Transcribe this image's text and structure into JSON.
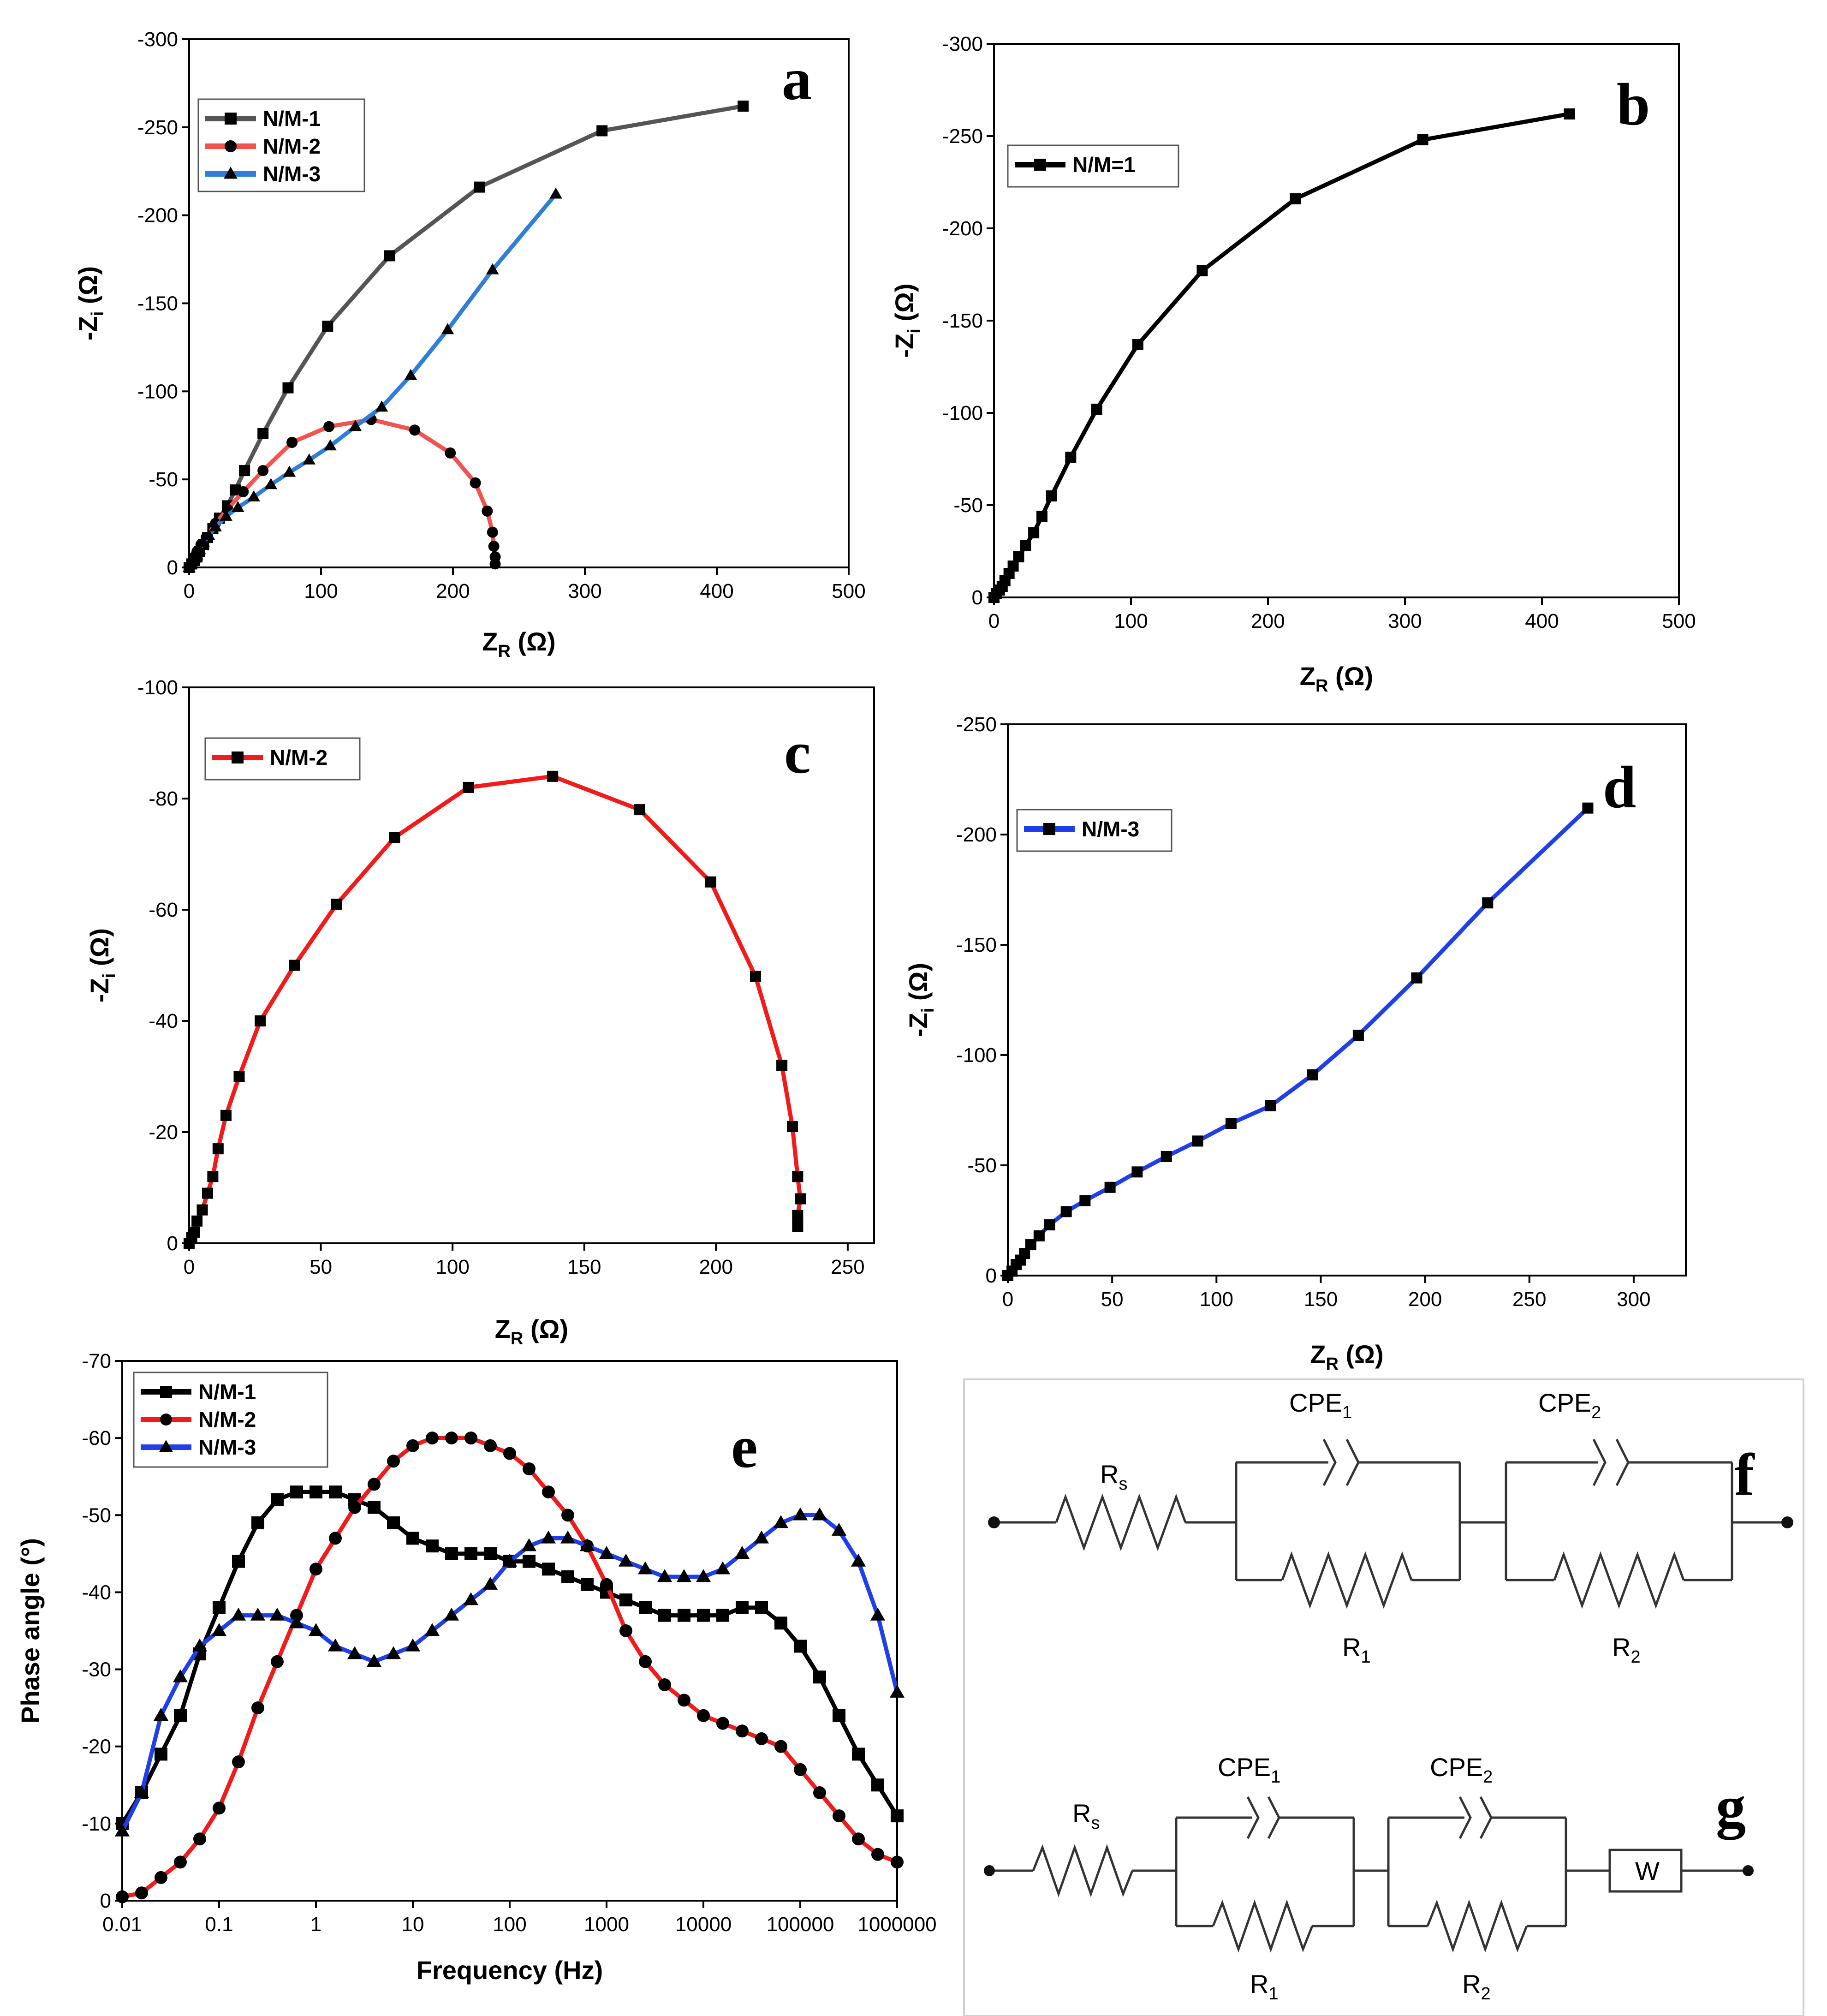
{
  "chart_data": [
    {
      "panel": "a",
      "type": "line",
      "xlabel_main": "Z",
      "xlabel_sub": "R",
      "xlabel_unit": " (Ω)",
      "ylabel_main": "-Z",
      "ylabel_sub": "i",
      "ylabel_unit": " (Ω)",
      "xlim": [
        0,
        500
      ],
      "ylim": [
        0,
        -300
      ],
      "xticks": [
        0,
        100,
        200,
        300,
        400,
        500
      ],
      "yticks": [
        0,
        -50,
        -100,
        -150,
        -200,
        -250,
        -300
      ],
      "legend_position": "top-left",
      "series": [
        {
          "name": "N/M-1",
          "color": "#555555",
          "marker": "square",
          "x": [
            0,
            2,
            4,
            6,
            8,
            11,
            14,
            18,
            23,
            29,
            35,
            42,
            56,
            75,
            105,
            152,
            220,
            313,
            420
          ],
          "y": [
            0,
            -2,
            -4,
            -6,
            -9,
            -13,
            -17,
            -22,
            -28,
            -35,
            -44,
            -55,
            -76,
            -102,
            -137,
            -177,
            -216,
            -248,
            -262
          ]
        },
        {
          "name": "N/M-2",
          "color": "#f2534f",
          "marker": "circle",
          "x": [
            0,
            2,
            4,
            6,
            9,
            13,
            20,
            29,
            41,
            56,
            78,
            106,
            138,
            171,
            198,
            217,
            226,
            230,
            231,
            232,
            232
          ],
          "y": [
            0,
            -3,
            -6,
            -9,
            -13,
            -17,
            -25,
            -33,
            -43,
            -55,
            -71,
            -80,
            -84,
            -78,
            -65,
            -48,
            -32,
            -20,
            -12,
            -6,
            -2
          ]
        },
        {
          "name": "N/M-3",
          "color": "#2f7fd9",
          "marker": "triangle",
          "x": [
            0,
            2,
            4,
            6,
            8,
            11,
            15,
            20,
            28,
            37,
            49,
            62,
            76,
            91,
            107,
            126,
            146,
            168,
            196,
            230,
            278
          ],
          "y": [
            0,
            -2,
            -5,
            -7,
            -10,
            -14,
            -18,
            -23,
            -29,
            -34,
            -40,
            -47,
            -54,
            -61,
            -69,
            -80,
            -91,
            -109,
            -135,
            -169,
            -212
          ]
        }
      ]
    },
    {
      "panel": "b",
      "type": "line",
      "xlabel_main": "Z",
      "xlabel_sub": "R",
      "xlabel_unit": " (Ω)",
      "ylabel_main": "-Z",
      "ylabel_sub": "i",
      "ylabel_unit": " (Ω)",
      "xlim": [
        0,
        500
      ],
      "ylim": [
        0,
        -300
      ],
      "xticks": [
        0,
        100,
        200,
        300,
        400,
        500
      ],
      "yticks": [
        0,
        -50,
        -100,
        -150,
        -200,
        -250,
        -300
      ],
      "legend_position": "top-left",
      "series": [
        {
          "name": "N/M=1",
          "color": "#000000",
          "marker": "square",
          "x": [
            0,
            2,
            4,
            6,
            8,
            11,
            14,
            18,
            23,
            29,
            35,
            42,
            56,
            75,
            105,
            152,
            220,
            313,
            420
          ],
          "y": [
            0,
            -2,
            -4,
            -6,
            -9,
            -13,
            -17,
            -22,
            -28,
            -35,
            -44,
            -55,
            -76,
            -102,
            -137,
            -177,
            -216,
            -248,
            -262
          ]
        }
      ]
    },
    {
      "panel": "c",
      "type": "line",
      "xlabel_main": "Z",
      "xlabel_sub": "R",
      "xlabel_unit": " (Ω)",
      "ylabel_main": "-Z",
      "ylabel_sub": "i",
      "ylabel_unit": " (Ω)",
      "xlim": [
        0,
        260
      ],
      "ylim": [
        0,
        -100
      ],
      "xticks": [
        0,
        50,
        100,
        150,
        200,
        250
      ],
      "yticks": [
        0,
        -20,
        -40,
        -60,
        -80,
        -100
      ],
      "legend_position": "top-left",
      "series": [
        {
          "name": "N/M-2",
          "color": "#f21a1a",
          "marker": "square",
          "x": [
            0,
            1,
            2,
            3,
            5,
            7,
            9,
            11,
            14,
            19,
            27,
            40,
            56,
            78,
            106,
            138,
            171,
            198,
            215,
            225,
            229,
            231,
            232,
            231,
            231
          ],
          "y": [
            0,
            -1,
            -2,
            -4,
            -6,
            -9,
            -12,
            -17,
            -23,
            -30,
            -40,
            -50,
            -61,
            -73,
            -82,
            -84,
            -78,
            -65,
            -48,
            -32,
            -21,
            -12,
            -8,
            -5,
            -3
          ]
        }
      ]
    },
    {
      "panel": "d",
      "type": "line",
      "xlabel_main": "Z",
      "xlabel_sub": "R",
      "xlabel_unit": " (Ω)",
      "ylabel_main": "-Z",
      "ylabel_sub": "i",
      "ylabel_unit": " (Ω)",
      "xlim": [
        0,
        325
      ],
      "ylim": [
        0,
        -250
      ],
      "xticks": [
        0,
        50,
        100,
        150,
        200,
        250,
        300
      ],
      "yticks": [
        0,
        -50,
        -100,
        -150,
        -200,
        -250
      ],
      "legend_position": "top-left",
      "series": [
        {
          "name": "N/M-3",
          "color": "#1f3fe8",
          "marker": "square",
          "x": [
            0,
            2,
            4,
            6,
            8,
            11,
            15,
            20,
            28,
            37,
            49,
            62,
            76,
            91,
            107,
            126,
            146,
            168,
            196,
            230,
            278
          ],
          "y": [
            0,
            -2,
            -5,
            -7,
            -10,
            -14,
            -18,
            -23,
            -29,
            -34,
            -40,
            -47,
            -54,
            -61,
            -69,
            -77,
            -91,
            -109,
            -135,
            -169,
            -212
          ]
        }
      ]
    },
    {
      "panel": "e",
      "type": "line",
      "xlabel_main": "Frequency (Hz)",
      "ylabel_main": "Phase angle (°)",
      "xscale": "log",
      "xlim": [
        0.01,
        1000000
      ],
      "ylim": [
        0,
        -70
      ],
      "xticks": [
        0.01,
        0.1,
        1,
        10,
        100,
        1000,
        10000,
        100000,
        1000000
      ],
      "xtick_labels": [
        "0.01",
        "0.1",
        "1",
        "10",
        "100",
        "1000",
        "10000",
        "100000",
        "1000000"
      ],
      "yticks": [
        0,
        -10,
        -20,
        -30,
        -40,
        -50,
        -60,
        -70
      ],
      "legend_position": "top-left",
      "series": [
        {
          "name": "N/M-1",
          "color": "#000000",
          "marker": "square",
          "logx": [
            -2,
            -1.8,
            -1.6,
            -1.4,
            -1.2,
            -1,
            -0.8,
            -0.6,
            -0.4,
            -0.2,
            0,
            0.2,
            0.4,
            0.6,
            0.8,
            1,
            1.2,
            1.4,
            1.6,
            1.8,
            2,
            2.2,
            2.4,
            2.6,
            2.8,
            3,
            3.2,
            3.4,
            3.6,
            3.8,
            4,
            4.2,
            4.4,
            4.6,
            4.8,
            5,
            5.2,
            5.4,
            5.6,
            5.8,
            6
          ],
          "y": [
            -10,
            -14,
            -19,
            -24,
            -32,
            -38,
            -44,
            -49,
            -52,
            -53,
            -53,
            -53,
            -52,
            -51,
            -49,
            -47,
            -46,
            -45,
            -45,
            -45,
            -44,
            -44,
            -43,
            -42,
            -41,
            -40,
            -39,
            -38,
            -37,
            -37,
            -37,
            -37,
            -38,
            -38,
            -36,
            -33,
            -29,
            -24,
            -19,
            -15,
            -11
          ]
        },
        {
          "name": "N/M-2",
          "color": "#f21a1a",
          "marker": "circle",
          "logx": [
            -2,
            -1.8,
            -1.6,
            -1.4,
            -1.2,
            -1,
            -0.8,
            -0.6,
            -0.4,
            -0.2,
            0,
            0.2,
            0.4,
            0.6,
            0.8,
            1,
            1.2,
            1.4,
            1.6,
            1.8,
            2,
            2.2,
            2.4,
            2.6,
            2.8,
            3,
            3.2,
            3.4,
            3.6,
            3.8,
            4,
            4.2,
            4.4,
            4.6,
            4.8,
            5,
            5.2,
            5.4,
            5.6,
            5.8,
            6
          ],
          "y": [
            -0.5,
            -1,
            -3,
            -5,
            -8,
            -12,
            -18,
            -25,
            -31,
            -37,
            -43,
            -47,
            -51,
            -54,
            -57,
            -59,
            -60,
            -60,
            -60,
            -59,
            -58,
            -56,
            -53,
            -50,
            -46,
            -41,
            -35,
            -31,
            -28,
            -26,
            -24,
            -23,
            -22,
            -21,
            -20,
            -17,
            -14,
            -11,
            -8,
            -6,
            -5
          ]
        },
        {
          "name": "N/M-3",
          "color": "#1f3fe8",
          "marker": "triangle",
          "logx": [
            -2,
            -1.8,
            -1.6,
            -1.4,
            -1.2,
            -1,
            -0.8,
            -0.6,
            -0.4,
            -0.2,
            0,
            0.2,
            0.4,
            0.6,
            0.8,
            1,
            1.2,
            1.4,
            1.6,
            1.8,
            2,
            2.2,
            2.4,
            2.6,
            2.8,
            3,
            3.2,
            3.4,
            3.6,
            3.8,
            4,
            4.2,
            4.4,
            4.6,
            4.8,
            5,
            5.2,
            5.4,
            5.6,
            5.8,
            6
          ],
          "y": [
            -9,
            -14,
            -24,
            -29,
            -33,
            -35,
            -37,
            -37,
            -37,
            -36,
            -35,
            -33,
            -32,
            -31,
            -32,
            -33,
            -35,
            -37,
            -39,
            -41,
            -44,
            -46,
            -47,
            -47,
            -46,
            -45,
            -44,
            -43,
            -42,
            -42,
            -42,
            -43,
            -45,
            -47,
            -49,
            -50,
            -50,
            -48,
            -44,
            -37,
            -27
          ]
        }
      ]
    }
  ],
  "panel_letters": {
    "a": "a",
    "b": "b",
    "c": "c",
    "d": "d",
    "e": "e",
    "f": "f",
    "g": "g"
  },
  "circuits": {
    "f": {
      "rs": "R",
      "rs_sub": "s",
      "cpe1": "CPE",
      "cpe1_sub": "1",
      "cpe2": "CPE",
      "cpe2_sub": "2",
      "r1": "R",
      "r1_sub": "1",
      "r2": "R",
      "r2_sub": "2"
    },
    "g": {
      "rs": "R",
      "rs_sub": "s",
      "cpe1": "CPE",
      "cpe1_sub": "1",
      "cpe2": "CPE",
      "cpe2_sub": "2",
      "r1": "R",
      "r1_sub": "1",
      "r2": "R",
      "r2_sub": "2",
      "w": "W"
    }
  }
}
